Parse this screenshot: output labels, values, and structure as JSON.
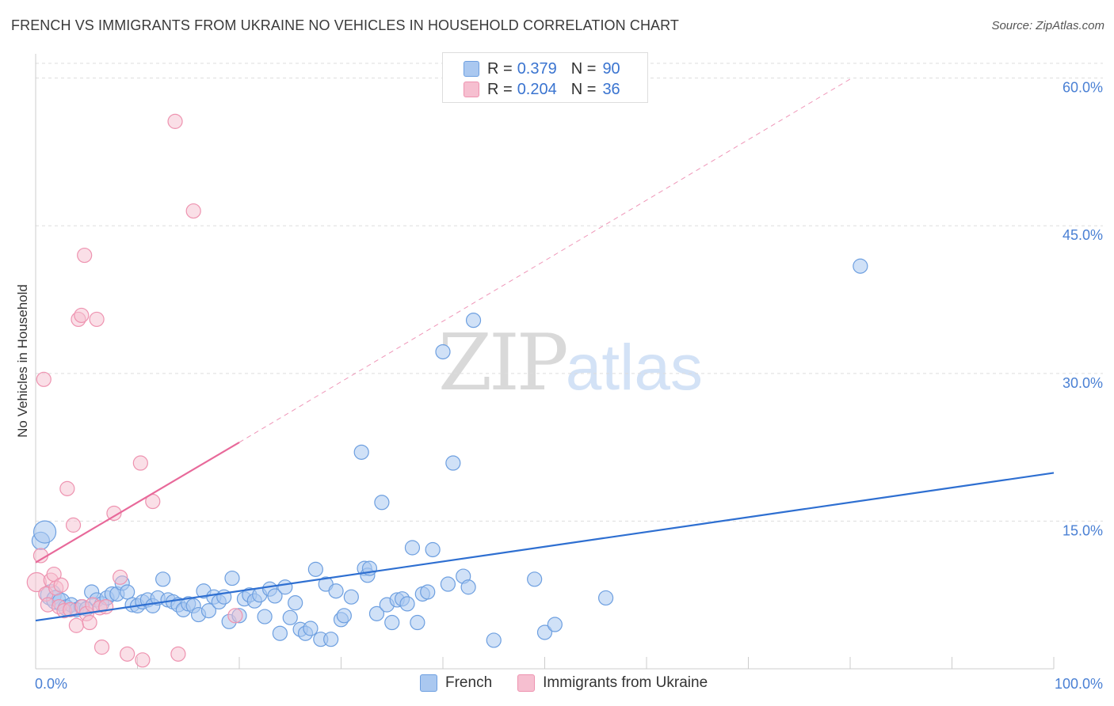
{
  "title": "FRENCH VS IMMIGRANTS FROM UKRAINE NO VEHICLES IN HOUSEHOLD CORRELATION CHART",
  "source": "Source: ZipAtlas.com",
  "watermark": {
    "zip": "ZIP",
    "atlas": "atlas"
  },
  "legend_top": {
    "rows": [
      {
        "r_label": "R =",
        "r_value": "0.379",
        "n_label": "N =",
        "n_value": "90"
      },
      {
        "r_label": "R =",
        "r_value": "0.204",
        "n_label": "N =",
        "n_value": "36"
      }
    ]
  },
  "legend_bottom": [
    "French",
    "Immigrants from Ukraine"
  ],
  "colors": {
    "french_fill": "#aac8f0",
    "french_stroke": "#6d9fe0",
    "french_line": "#2e6fd1",
    "ukraine_fill": "#f6bfd0",
    "ukraine_stroke": "#ee93b0",
    "ukraine_line": "#e8699a",
    "tick_label": "#4a80d4",
    "grid": "#dddddd"
  },
  "chart_data": {
    "type": "scatter",
    "title": "FRENCH VS IMMIGRANTS FROM UKRAINE NO VEHICLES IN HOUSEHOLD CORRELATION CHART",
    "xlabel": "",
    "ylabel": "No Vehicles in Household",
    "xlim": [
      0,
      100
    ],
    "ylim": [
      0,
      61.5
    ],
    "x_tick_labels": [
      "0.0%",
      "100.0%"
    ],
    "y_ticks": [
      15,
      30,
      45,
      60
    ],
    "y_tick_labels": [
      "15.0%",
      "30.0%",
      "45.0%",
      "60.0%"
    ],
    "grid": true,
    "legend_position": "top-center",
    "series": [
      {
        "name": "French",
        "r": 0.379,
        "n": 90,
        "trend": {
          "x0": 0,
          "y0": 4.9,
          "x1": 100,
          "y1": 19.9,
          "style": "solid"
        },
        "points": [
          [
            0.5,
            13.0,
            11
          ],
          [
            0.9,
            13.9,
            14
          ],
          [
            1.5,
            7.5,
            13
          ],
          [
            2.0,
            7.0,
            12
          ],
          [
            2.5,
            6.8,
            11
          ],
          [
            3.0,
            6.2,
            10
          ],
          [
            3.5,
            6.5,
            9
          ],
          [
            4.0,
            6.0,
            9
          ],
          [
            4.5,
            6.3,
            9
          ],
          [
            5.0,
            6.1,
            9
          ],
          [
            5.5,
            7.8,
            9
          ],
          [
            6.0,
            7.0,
            9
          ],
          [
            6.5,
            6.6,
            9
          ],
          [
            7.0,
            7.2,
            9
          ],
          [
            7.5,
            7.6,
            9
          ],
          [
            8.0,
            7.6,
            9
          ],
          [
            8.5,
            8.7,
            9
          ],
          [
            9.0,
            7.8,
            9
          ],
          [
            9.5,
            6.5,
            9
          ],
          [
            10.0,
            6.4,
            9
          ],
          [
            10.5,
            6.8,
            9
          ],
          [
            11.0,
            7.0,
            9
          ],
          [
            11.5,
            6.4,
            9
          ],
          [
            12.0,
            7.2,
            9
          ],
          [
            12.5,
            9.1,
            9
          ],
          [
            13.0,
            7.0,
            9
          ],
          [
            13.5,
            6.8,
            9
          ],
          [
            14.0,
            6.5,
            9
          ],
          [
            14.5,
            6.0,
            9
          ],
          [
            15.0,
            6.6,
            9
          ],
          [
            15.5,
            6.4,
            9
          ],
          [
            16.0,
            5.5,
            9
          ],
          [
            16.5,
            7.9,
            9
          ],
          [
            17.0,
            5.9,
            9
          ],
          [
            17.5,
            7.3,
            9
          ],
          [
            18.0,
            6.8,
            9
          ],
          [
            18.5,
            7.3,
            9
          ],
          [
            19.0,
            4.8,
            9
          ],
          [
            19.3,
            9.2,
            9
          ],
          [
            20.0,
            5.4,
            9
          ],
          [
            20.5,
            7.1,
            9
          ],
          [
            21.0,
            7.5,
            9
          ],
          [
            21.5,
            6.9,
            9
          ],
          [
            22.0,
            7.5,
            9
          ],
          [
            22.5,
            5.3,
            9
          ],
          [
            23.0,
            8.1,
            9
          ],
          [
            23.5,
            7.4,
            9
          ],
          [
            24.0,
            3.6,
            9
          ],
          [
            24.5,
            8.3,
            9
          ],
          [
            25.0,
            5.2,
            9
          ],
          [
            25.5,
            6.7,
            9
          ],
          [
            26.0,
            4.0,
            9
          ],
          [
            26.5,
            3.6,
            9
          ],
          [
            27.0,
            4.1,
            9
          ],
          [
            27.5,
            10.1,
            9
          ],
          [
            28.0,
            3.0,
            9
          ],
          [
            28.5,
            8.6,
            9
          ],
          [
            29.0,
            3.0,
            9
          ],
          [
            29.5,
            7.9,
            9
          ],
          [
            30.0,
            5.0,
            9
          ],
          [
            30.3,
            5.4,
            9
          ],
          [
            31.0,
            7.3,
            9
          ],
          [
            32.0,
            22.0,
            9
          ],
          [
            32.3,
            10.2,
            9
          ],
          [
            32.6,
            9.5,
            9
          ],
          [
            32.8,
            10.2,
            9
          ],
          [
            33.5,
            5.6,
            9
          ],
          [
            34.0,
            16.9,
            9
          ],
          [
            34.5,
            6.5,
            9
          ],
          [
            35.0,
            4.7,
            9
          ],
          [
            35.5,
            7.0,
            9
          ],
          [
            36.0,
            7.1,
            9
          ],
          [
            36.5,
            6.6,
            9
          ],
          [
            37.0,
            12.3,
            9
          ],
          [
            37.5,
            4.7,
            9
          ],
          [
            38.0,
            7.6,
            9
          ],
          [
            38.5,
            7.8,
            9
          ],
          [
            39.0,
            12.1,
            9
          ],
          [
            40.0,
            32.2,
            9
          ],
          [
            40.5,
            8.6,
            9
          ],
          [
            41.0,
            20.9,
            9
          ],
          [
            42.0,
            9.4,
            9
          ],
          [
            42.5,
            8.3,
            9
          ],
          [
            43.0,
            35.4,
            9
          ],
          [
            45.0,
            2.9,
            9
          ],
          [
            49.0,
            9.1,
            9
          ],
          [
            50.0,
            3.7,
            9
          ],
          [
            51.0,
            4.5,
            9
          ],
          [
            56.0,
            7.2,
            9
          ],
          [
            81.0,
            40.9,
            9
          ]
        ]
      },
      {
        "name": "Immigrants from Ukraine",
        "r": 0.204,
        "n": 36,
        "trend_solid": {
          "x0": 0,
          "y0": 10.8,
          "x1": 20,
          "y1": 23.0
        },
        "trend_dashed": {
          "x0": 20,
          "y0": 23.0,
          "x1": 80,
          "y1": 59.9
        },
        "points": [
          [
            0.1,
            8.8,
            12
          ],
          [
            0.5,
            11.5,
            9
          ],
          [
            0.8,
            29.4,
            9
          ],
          [
            1.0,
            7.6,
            9
          ],
          [
            1.2,
            6.5,
            9
          ],
          [
            1.5,
            9.0,
            9
          ],
          [
            1.8,
            9.6,
            9
          ],
          [
            2.0,
            8.2,
            9
          ],
          [
            2.3,
            6.3,
            9
          ],
          [
            2.5,
            8.5,
            9
          ],
          [
            2.8,
            5.9,
            9
          ],
          [
            3.1,
            18.3,
            9
          ],
          [
            3.4,
            6.0,
            9
          ],
          [
            3.7,
            14.6,
            9
          ],
          [
            4.0,
            4.4,
            9
          ],
          [
            4.2,
            35.5,
            9
          ],
          [
            4.5,
            35.9,
            9
          ],
          [
            4.6,
            6.3,
            9
          ],
          [
            4.8,
            42.0,
            9
          ],
          [
            5.0,
            5.6,
            9
          ],
          [
            5.3,
            4.7,
            9
          ],
          [
            5.6,
            6.5,
            9
          ],
          [
            6.0,
            35.5,
            9
          ],
          [
            6.3,
            6.2,
            9
          ],
          [
            6.5,
            2.2,
            9
          ],
          [
            6.9,
            6.3,
            9
          ],
          [
            7.7,
            15.8,
            9
          ],
          [
            8.3,
            9.3,
            9
          ],
          [
            9.0,
            1.5,
            9
          ],
          [
            10.3,
            20.9,
            9
          ],
          [
            10.5,
            0.9,
            9
          ],
          [
            11.5,
            17.0,
            9
          ],
          [
            13.7,
            55.6,
            9
          ],
          [
            14.0,
            1.5,
            9
          ],
          [
            15.5,
            46.5,
            9
          ],
          [
            19.6,
            5.4,
            9
          ]
        ]
      }
    ]
  }
}
